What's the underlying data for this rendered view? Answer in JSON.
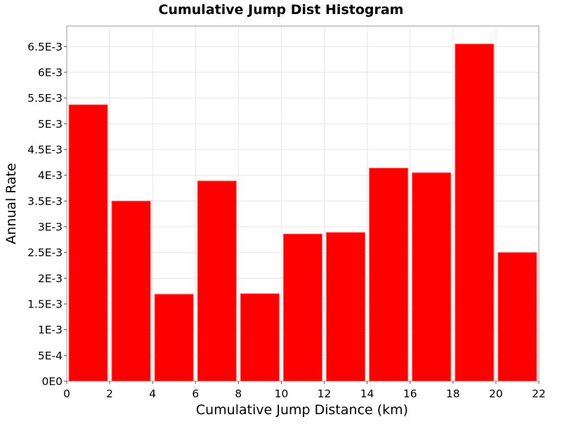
{
  "chart_data": {
    "type": "bar",
    "title": "Cumulative Jump Dist Histogram",
    "xlabel": "Cumulative Jump Distance (km)",
    "ylabel": "Annual Rate",
    "xlim": [
      0,
      22
    ],
    "ylim": [
      0,
      0.0069
    ],
    "grid": true,
    "legend": "none",
    "bar_color": "#ff0000",
    "bin_width": 2,
    "x_ticks": [
      0,
      2,
      4,
      6,
      8,
      10,
      12,
      14,
      16,
      18,
      20,
      22
    ],
    "x_tick_labels": [
      "0",
      "2",
      "4",
      "6",
      "8",
      "10",
      "12",
      "14",
      "16",
      "18",
      "20",
      "22"
    ],
    "y_ticks": [
      0,
      0.0005,
      0.001,
      0.0015,
      0.002,
      0.0025,
      0.003,
      0.0035,
      0.004,
      0.0045,
      0.005,
      0.0055,
      0.006,
      0.0065
    ],
    "y_tick_labels": [
      "0E0",
      "5E-4",
      "1E-3",
      "1.5E-3",
      "2E-3",
      "2.5E-3",
      "3E-3",
      "3.5E-3",
      "4E-3",
      "4.5E-3",
      "5E-3",
      "5.5E-3",
      "6E-3",
      "6.5E-3"
    ],
    "x": [
      1,
      3,
      5,
      7,
      9,
      11,
      13,
      15,
      17,
      19,
      21
    ],
    "values": [
      0.00537,
      0.0035,
      0.00169,
      0.00389,
      0.0017,
      0.00286,
      0.00289,
      0.00414,
      0.00405,
      0.00655,
      0.0025
    ]
  }
}
